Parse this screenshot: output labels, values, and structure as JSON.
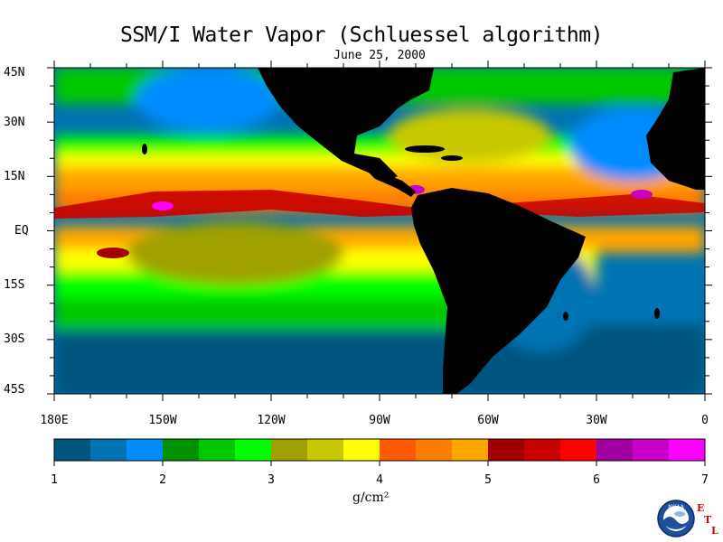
{
  "map": {
    "title": "SSM/I Water Vapor (Schluessel algorithm)",
    "date": "June 25, 2000",
    "lat_labels": [
      "45N",
      "30N",
      "15N",
      "EQ",
      "15S",
      "30S",
      "45S"
    ],
    "lon_labels": [
      "180E",
      "150W",
      "120W",
      "90W",
      "60W",
      "30W",
      "0"
    ]
  },
  "colorbar": {
    "ticks": [
      "1",
      "2",
      "3",
      "4",
      "5",
      "6",
      "7"
    ],
    "units": "g/cm²",
    "colors": [
      "#00557f",
      "#0073b2",
      "#008cff",
      "#009100",
      "#00c800",
      "#00ff00",
      "#a0a000",
      "#c8c800",
      "#ffff00",
      "#ff5a00",
      "#ff7d00",
      "#ffa500",
      "#a00000",
      "#c80000",
      "#ff0000",
      "#a000a0",
      "#c800c8",
      "#ff00ff"
    ]
  },
  "logo": {
    "agency": "NOAA",
    "lab_letters": [
      "E",
      "T",
      "L"
    ]
  }
}
